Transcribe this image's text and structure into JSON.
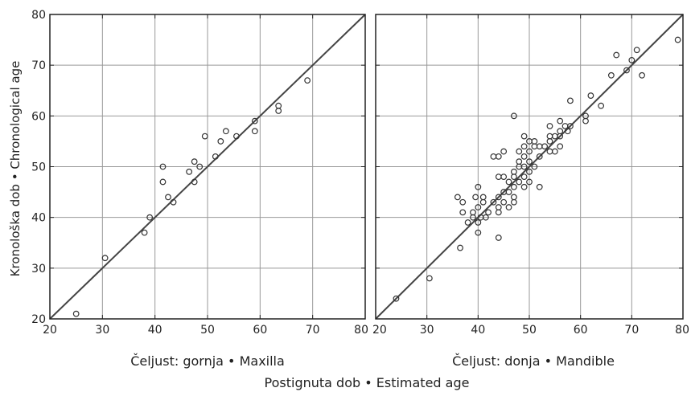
{
  "ylabel": "Kronološka dob • Chronological age",
  "xlabel": "Postignuta dob • Estimated age",
  "colors": {
    "marker": "#333333",
    "line": "#444444",
    "grid": "#999999",
    "frame": "#222222"
  },
  "chart_data": [
    {
      "type": "scatter",
      "xlabel": "Čeljust: gornja • Maxilla",
      "xlim": [
        20,
        80
      ],
      "ylim": [
        20,
        80
      ],
      "xticks": [
        20,
        30,
        40,
        50,
        60,
        70,
        80
      ],
      "yticks": [
        20,
        30,
        40,
        50,
        60,
        70,
        80
      ],
      "xtick_labels": [
        "20",
        "30",
        "40",
        "50",
        "60",
        "70",
        "80"
      ],
      "ytick_labels": [
        "20",
        "30",
        "40",
        "50",
        "60",
        "70",
        "80"
      ],
      "grid": true,
      "reference_line": [
        [
          20,
          20
        ],
        [
          80,
          80
        ]
      ],
      "points": [
        [
          25,
          21
        ],
        [
          30.5,
          32
        ],
        [
          38,
          37
        ],
        [
          39,
          40
        ],
        [
          41.5,
          47
        ],
        [
          41.5,
          50
        ],
        [
          42.5,
          44
        ],
        [
          43.5,
          43
        ],
        [
          46.5,
          49
        ],
        [
          47.5,
          47
        ],
        [
          47.5,
          51
        ],
        [
          48.5,
          50
        ],
        [
          49.5,
          56
        ],
        [
          51.5,
          52
        ],
        [
          52.5,
          55
        ],
        [
          53.5,
          57
        ],
        [
          55.5,
          56
        ],
        [
          59,
          57
        ],
        [
          59,
          59
        ],
        [
          63.5,
          61
        ],
        [
          63.5,
          62
        ],
        [
          69,
          67
        ]
      ]
    },
    {
      "type": "scatter",
      "xlabel": "Čeljust: donja • Mandible",
      "xlim": [
        20,
        80
      ],
      "ylim": [
        20,
        80
      ],
      "xticks": [
        20,
        30,
        40,
        50,
        60,
        70,
        80
      ],
      "yticks": [
        20,
        30,
        40,
        50,
        60,
        70,
        80
      ],
      "xtick_labels": [
        "20",
        "30",
        "40",
        "50",
        "60",
        "70",
        "80"
      ],
      "grid": true,
      "reference_line": [
        [
          20,
          20
        ],
        [
          80,
          80
        ]
      ],
      "points": [
        [
          24,
          24
        ],
        [
          30.5,
          28
        ],
        [
          36,
          44
        ],
        [
          36.5,
          34
        ],
        [
          37,
          43
        ],
        [
          37,
          41
        ],
        [
          38,
          39
        ],
        [
          39,
          41
        ],
        [
          39,
          40
        ],
        [
          39.5,
          44
        ],
        [
          40,
          37
        ],
        [
          40,
          39
        ],
        [
          40,
          42
        ],
        [
          40,
          46
        ],
        [
          40.5,
          40
        ],
        [
          41,
          43
        ],
        [
          41,
          44
        ],
        [
          41.5,
          40
        ],
        [
          42,
          41
        ],
        [
          43,
          43
        ],
        [
          43,
          52
        ],
        [
          44,
          36
        ],
        [
          44,
          41
        ],
        [
          44,
          42
        ],
        [
          44,
          44
        ],
        [
          44,
          48
        ],
        [
          44,
          52
        ],
        [
          45,
          43
        ],
        [
          45,
          45
        ],
        [
          45,
          48
        ],
        [
          45,
          53
        ],
        [
          46,
          42
        ],
        [
          46,
          45
        ],
        [
          46,
          47
        ],
        [
          47,
          43
        ],
        [
          47,
          44
        ],
        [
          47,
          46
        ],
        [
          47,
          48
        ],
        [
          47,
          49
        ],
        [
          47,
          60
        ],
        [
          48,
          47
        ],
        [
          48,
          50
        ],
        [
          48,
          51
        ],
        [
          48,
          53
        ],
        [
          49,
          46
        ],
        [
          49,
          48
        ],
        [
          49,
          50
        ],
        [
          49,
          52
        ],
        [
          49,
          54
        ],
        [
          49,
          56
        ],
        [
          50,
          47
        ],
        [
          50,
          49
        ],
        [
          50,
          51
        ],
        [
          50,
          53
        ],
        [
          50,
          55
        ],
        [
          51,
          50
        ],
        [
          51,
          54
        ],
        [
          51,
          55
        ],
        [
          52,
          46
        ],
        [
          52,
          52
        ],
        [
          52,
          54
        ],
        [
          53,
          54
        ],
        [
          54,
          53
        ],
        [
          54,
          55
        ],
        [
          54,
          56
        ],
        [
          54,
          58
        ],
        [
          55,
          53
        ],
        [
          55,
          56
        ],
        [
          56,
          54
        ],
        [
          56,
          56
        ],
        [
          56,
          57
        ],
        [
          56,
          59
        ],
        [
          57,
          58
        ],
        [
          57.5,
          57
        ],
        [
          58,
          58
        ],
        [
          58,
          63
        ],
        [
          61,
          60
        ],
        [
          61,
          59
        ],
        [
          62,
          64
        ],
        [
          64,
          62
        ],
        [
          66,
          68
        ],
        [
          67,
          72
        ],
        [
          69,
          69
        ],
        [
          70,
          71
        ],
        [
          71,
          73
        ],
        [
          72,
          68
        ],
        [
          79,
          75
        ]
      ]
    }
  ]
}
